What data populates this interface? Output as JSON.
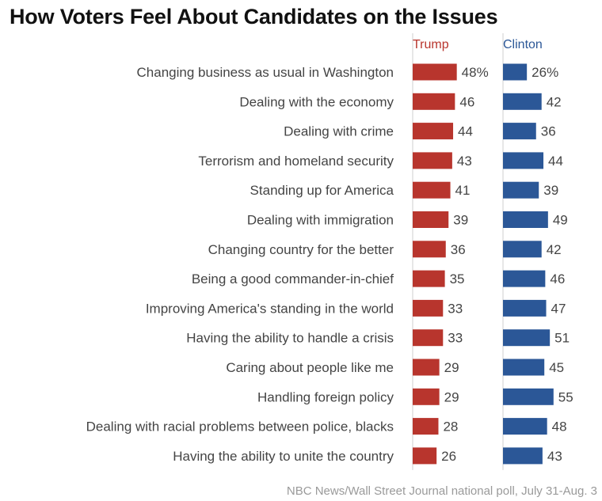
{
  "chart_data": {
    "type": "bar",
    "title": "How Voters Feel About Candidates on the Issues",
    "source": "NBC News/Wall Street Journal national poll, July 31-Aug. 3",
    "categories": [
      "Changing business as usual in Washington",
      "Dealing with the economy",
      "Dealing with crime",
      "Terrorism and homeland security",
      "Standing up for America",
      "Dealing with immigration",
      "Changing country for the better",
      "Being a good commander-in-chief",
      "Improving America's standing in the world",
      "Having the ability to handle a crisis",
      "Caring about people like me",
      "Handling foreign policy",
      "Dealing with racial problems between police, blacks",
      "Having the ability to unite the country"
    ],
    "series": [
      {
        "name": "Trump",
        "color": "#b8352d",
        "values": [
          48,
          46,
          44,
          43,
          41,
          39,
          36,
          35,
          33,
          33,
          29,
          29,
          28,
          26
        ],
        "labels": [
          "48%",
          "46",
          "44",
          "43",
          "41",
          "39",
          "36",
          "35",
          "33",
          "33",
          "29",
          "29",
          "28",
          "26"
        ]
      },
      {
        "name": "Clinton",
        "color": "#2b5797",
        "values": [
          26,
          42,
          36,
          44,
          39,
          49,
          42,
          46,
          47,
          51,
          45,
          55,
          48,
          43
        ],
        "labels": [
          "26%",
          "42",
          "36",
          "44",
          "39",
          "49",
          "42",
          "46",
          "47",
          "51",
          "45",
          "55",
          "48",
          "43"
        ]
      }
    ],
    "xlim": [
      0,
      100
    ],
    "legend": "top",
    "grid": false
  }
}
